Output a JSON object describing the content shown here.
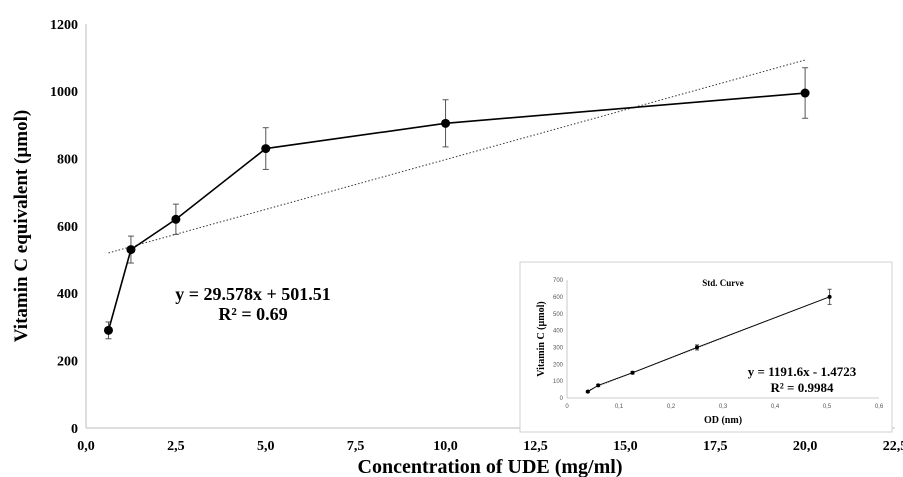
{
  "chart_data": [
    {
      "type": "line",
      "xlabel": "Concentration of UDE (mg/ml)",
      "ylabel": "Vitamin C equivalent (µmol)",
      "xlim": [
        0,
        22.5
      ],
      "ylim": [
        0,
        1200
      ],
      "x_tick_labels": [
        "0,0",
        "2,5",
        "5,0",
        "7,5",
        "10,0",
        "12,5",
        "15,0",
        "17,5",
        "20,0",
        "22,5"
      ],
      "y_tick_labels": [
        "0",
        "200",
        "400",
        "600",
        "800",
        "1000",
        "1200"
      ],
      "grid": false,
      "series": [
        {
          "x": [
            0.625,
            1.25,
            2.5,
            5,
            10,
            20
          ],
          "y": [
            290,
            530,
            620,
            830,
            905,
            995
          ],
          "error": [
            25,
            40,
            45,
            62,
            70,
            75
          ]
        }
      ],
      "trendline": {
        "slope": 29.578,
        "intercept": 501.51,
        "x_range": [
          0.625,
          20
        ]
      },
      "annotations": [
        "y = 29.578x + 501.51",
        "R² = 0.69"
      ]
    },
    {
      "type": "line",
      "title": "Std. Curve",
      "xlabel": "OD (nm)",
      "ylabel": "Vitamin C (µmol)",
      "xlim": [
        0,
        0.6
      ],
      "ylim": [
        0,
        700
      ],
      "x_tick_labels": [
        "0",
        "0,1",
        "0,2",
        "0,3",
        "0,4",
        "0,5",
        "0,6"
      ],
      "y_tick_labels": [
        "0",
        "100",
        "200",
        "300",
        "400",
        "500",
        "600",
        "700"
      ],
      "series": [
        {
          "x": [
            0.04,
            0.06,
            0.126,
            0.25,
            0.505
          ],
          "y": [
            37.5,
            75,
            150,
            300,
            600
          ],
          "error": [
            5,
            6,
            8,
            15,
            45
          ]
        }
      ],
      "trendline": {
        "slope": 1191.6,
        "intercept": -1.4723,
        "x_range": [
          0.04,
          0.505
        ]
      },
      "annotations": [
        "y = 1191.6x - 1.4723",
        "R² = 0.9984"
      ]
    }
  ]
}
